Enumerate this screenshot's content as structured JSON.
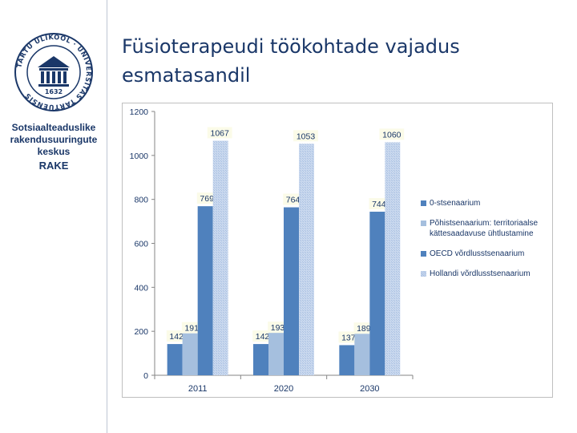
{
  "slide": {
    "title_lines": [
      "Füsioterapeudi töökohtade vajadus",
      "esmatasandil"
    ]
  },
  "sidebar": {
    "seal_text_outer": "TARTU ÜLIKOOL · UNIVERSITAS TARTUENSIS",
    "seal_year": "1632",
    "dept_lines": [
      "Sotsiaalteaduslike",
      "rakendusuuringute",
      "keskus"
    ],
    "dept_abbr": "RAKE"
  },
  "chart_data": {
    "type": "bar",
    "categories": [
      "2011",
      "2020",
      "2030"
    ],
    "series": [
      {
        "name": "0-stsenaarium",
        "color": "#4f81bd",
        "values": [
          142,
          142,
          137
        ]
      },
      {
        "name": "Põhistsenaarium: territoriaalse kättesaadavuse ühtlustamine",
        "color": "#a5bfde",
        "values": [
          191,
          193,
          189
        ]
      },
      {
        "name": "OECD võrdlusstsenaarium",
        "color": "#4f81bd",
        "values": [
          769,
          764,
          744
        ]
      },
      {
        "name": "Hollandi võrdlusstsenaarium",
        "color": "#c9d8ee",
        "hatched": true,
        "values": [
          1067,
          1053,
          1060
        ]
      }
    ],
    "ylim": [
      0,
      1200
    ],
    "yticks": [
      "0",
      "200",
      "400",
      "600",
      "800",
      "1000",
      "1200"
    ],
    "grid": false,
    "legend_position": "right"
  }
}
